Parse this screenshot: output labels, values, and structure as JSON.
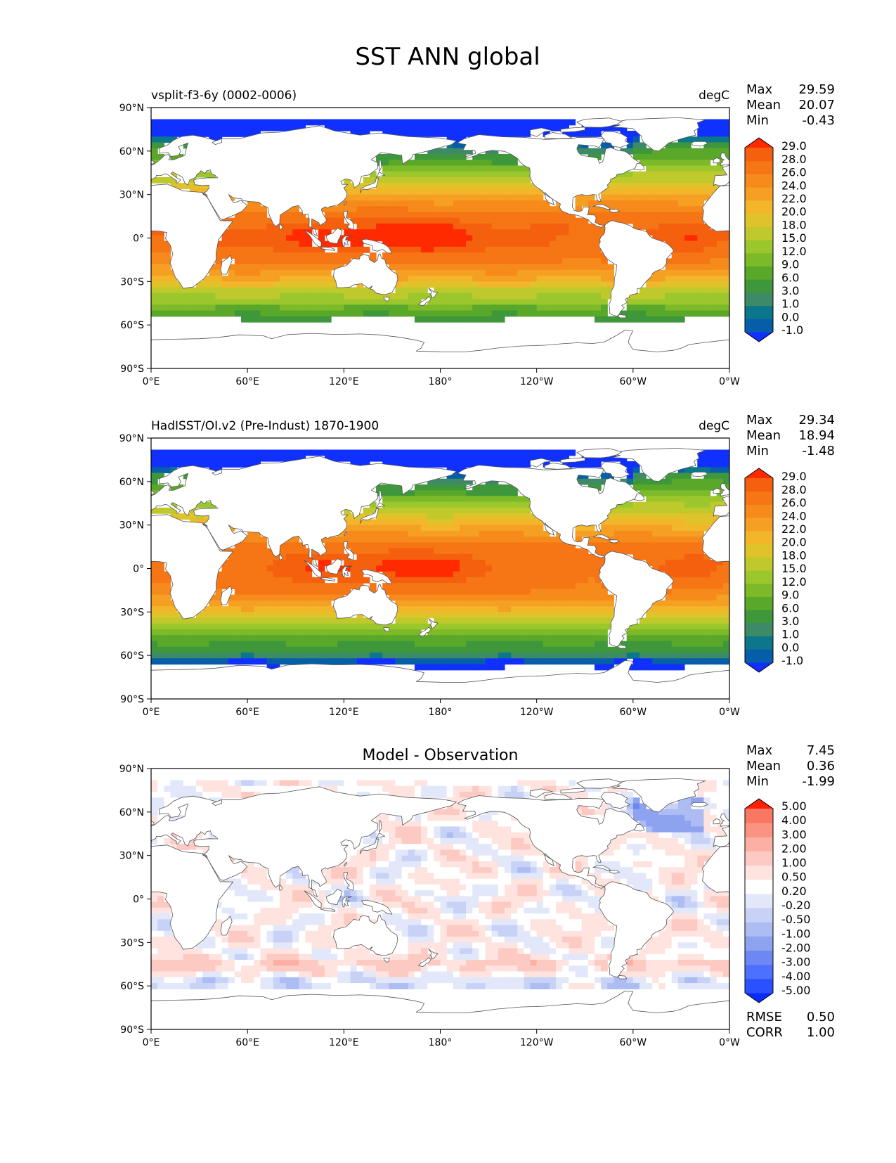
{
  "figure": {
    "title": "SST ANN global"
  },
  "axes": {
    "lat_ticks": [
      "90°N",
      "60°N",
      "30°N",
      "0°",
      "30°S",
      "60°S",
      "90°S"
    ],
    "lon_ticks": [
      "0°E",
      "60°E",
      "120°E",
      "180°",
      "120°W",
      "60°W",
      "0°W"
    ]
  },
  "colors": {
    "sst_palette": [
      "#0a50ff",
      "#075ea8",
      "#0c768d",
      "#3d8a67",
      "#3e983b",
      "#5aa82a",
      "#7dba2a",
      "#9cc72c",
      "#bfc92c",
      "#e0c32a",
      "#f3b52a",
      "#f5a023",
      "#f68b1c",
      "#f67515",
      "#f5600f",
      "#f24a0c",
      "#f5320a",
      "#ff1e00"
    ],
    "diff_palette": [
      "#0b2cff",
      "#2a50ff",
      "#4e70ff",
      "#6d88f4",
      "#8ea3f0",
      "#adbcf3",
      "#c7d2f6",
      "#e2e8fa",
      "#ffffff",
      "#ffe3df",
      "#fdcac3",
      "#fcb0a5",
      "#fb9382",
      "#fa7763",
      "#f95a45",
      "#f73a22",
      "#f51f0a"
    ],
    "sst_under": "#1030ff",
    "sst_over": "#ff2a00",
    "diff_under": "#0a2aff",
    "diff_over": "#ff2000",
    "land": "#ffffff"
  },
  "chart_data": [
    {
      "type": "heatmap",
      "panel": "model",
      "title_left": "vsplit-f3-6y (0002-0006)",
      "title_right": "degC",
      "title_center": "",
      "units": "degC",
      "stats": {
        "max_label": "Max",
        "max": "29.59",
        "mean_label": "Mean",
        "mean": "20.07",
        "min_label": "Min",
        "min": "-0.43"
      },
      "colorbar": {
        "levels": [
          -1.0,
          0.0,
          1.0,
          3.0,
          6.0,
          9.0,
          12.0,
          15.0,
          18.0,
          20.0,
          22.0,
          24.0,
          26.0,
          28.0,
          29.0
        ],
        "labels": [
          "-1.0",
          "0.0",
          "1.0",
          "3.0",
          "6.0",
          "9.0",
          "12.0",
          "15.0",
          "18.0",
          "20.0",
          "22.0",
          "24.0",
          "26.0",
          "28.0",
          "29.0"
        ]
      },
      "xlabel": "",
      "ylabel": "",
      "xlim": [
        0,
        360
      ],
      "ylim": [
        -90,
        90
      ],
      "field": {
        "equator_value": 28.6,
        "sea_ice_edge_south": -56,
        "sea_ice_edge_north": 80,
        "warm_pool_center_lon": 150
      }
    },
    {
      "type": "heatmap",
      "panel": "observation",
      "title_left": "HadISST/OI.v2 (Pre-Indust) 1870-1900",
      "title_right": "degC",
      "title_center": "",
      "units": "degC",
      "stats": {
        "max_label": "Max",
        "max": "29.34",
        "mean_label": "Mean",
        "mean": "18.94",
        "min_label": "Min",
        "min": "-1.48"
      },
      "colorbar": {
        "levels": [
          -1.0,
          0.0,
          1.0,
          3.0,
          6.0,
          9.0,
          12.0,
          15.0,
          18.0,
          20.0,
          22.0,
          24.0,
          26.0,
          28.0,
          29.0
        ],
        "labels": [
          "-1.0",
          "0.0",
          "1.0",
          "3.0",
          "6.0",
          "9.0",
          "12.0",
          "15.0",
          "18.0",
          "20.0",
          "22.0",
          "24.0",
          "26.0",
          "28.0",
          "29.0"
        ]
      },
      "xlabel": "",
      "ylabel": "",
      "xlim": [
        0,
        360
      ],
      "ylim": [
        -90,
        90
      ],
      "field": {
        "equator_value": 28.2,
        "sea_ice_edge_south": -68,
        "sea_ice_edge_north": 80,
        "warm_pool_center_lon": 150
      }
    },
    {
      "type": "heatmap",
      "panel": "difference",
      "title_left": "",
      "title_right": "",
      "title_center": "Model - Observation",
      "units": "degC",
      "stats": {
        "max_label": "Max",
        "max": "7.45",
        "mean_label": "Mean",
        "mean": "0.36",
        "min_label": "Min",
        "min": "-1.99"
      },
      "metrics": {
        "rmse_label": "RMSE",
        "rmse": "0.50",
        "corr_label": "CORR",
        "corr": "1.00"
      },
      "colorbar": {
        "levels": [
          -5.0,
          -4.0,
          -3.0,
          -2.0,
          -1.0,
          -0.5,
          -0.2,
          0.2,
          0.5,
          1.0,
          2.0,
          3.0,
          4.0,
          5.0
        ],
        "labels": [
          "-5.00",
          "-4.00",
          "-3.00",
          "-2.00",
          "-1.00",
          "-0.50",
          "-0.20",
          "0.20",
          "0.50",
          "1.00",
          "2.00",
          "3.00",
          "4.00",
          "5.00"
        ]
      },
      "xlabel": "",
      "ylabel": "",
      "xlim": [
        0,
        360
      ],
      "ylim": [
        -90,
        90
      ],
      "field": {
        "typical_value": 0.4
      }
    }
  ]
}
